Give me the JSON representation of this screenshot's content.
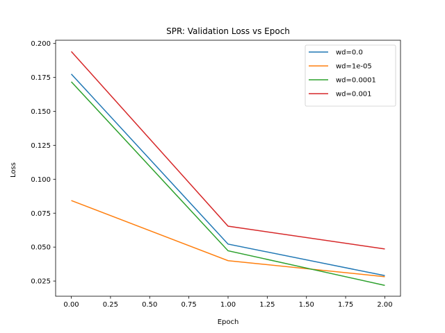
{
  "chart_data": {
    "type": "line",
    "title": "SPR: Validation Loss vs Epoch",
    "xlabel": "Epoch",
    "ylabel": "Loss",
    "x": [
      0.0,
      1.0,
      2.0
    ],
    "xlim": [
      -0.1,
      2.1
    ],
    "ylim": [
      0.0138,
      0.2024
    ],
    "xticks": [
      "0.00",
      "0.25",
      "0.50",
      "0.75",
      "1.00",
      "1.25",
      "1.50",
      "1.75",
      "2.00"
    ],
    "yticks": [
      "0.025",
      "0.050",
      "0.075",
      "0.100",
      "0.125",
      "0.150",
      "0.175",
      "0.200"
    ],
    "grid": false,
    "legend_position": "top-right",
    "series": [
      {
        "name": "wd=0.0",
        "values": [
          0.1775,
          0.0522,
          0.029
        ],
        "color": "#1f77b4"
      },
      {
        "name": "wd=1e-05",
        "values": [
          0.0843,
          0.04,
          0.0282
        ],
        "color": "#ff7f0e"
      },
      {
        "name": "wd=0.0001",
        "values": [
          0.1718,
          0.0473,
          0.0218
        ],
        "color": "#2ca02c"
      },
      {
        "name": "wd=0.001",
        "values": [
          0.1941,
          0.0654,
          0.0486
        ],
        "color": "#d62728"
      }
    ]
  }
}
